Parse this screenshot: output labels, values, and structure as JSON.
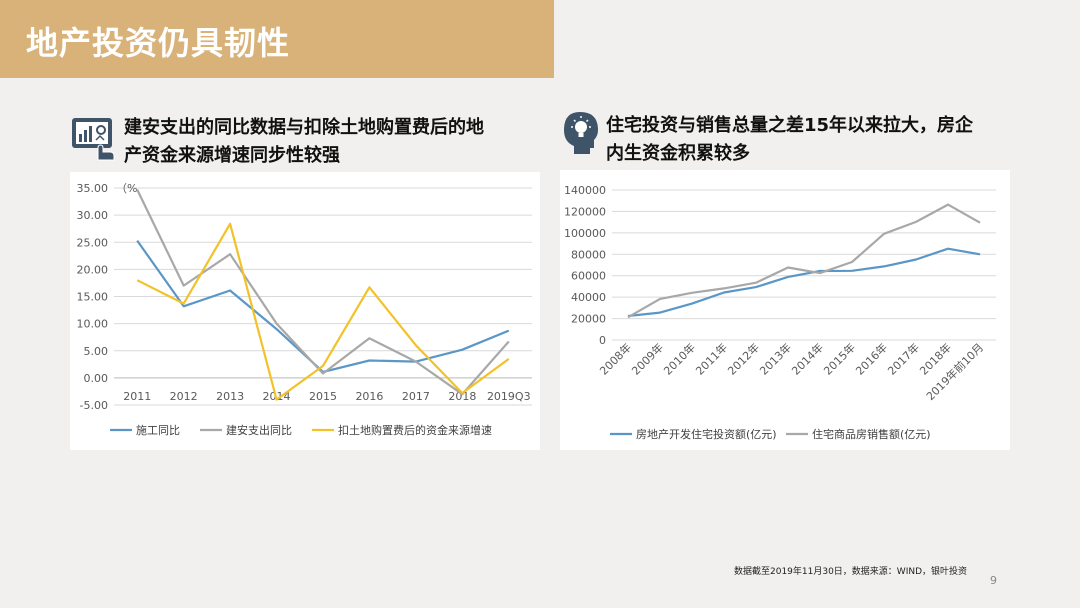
{
  "slide": {
    "title": "地产投资仍具韧性",
    "page_number": "9",
    "footnote": "数据截至2019年11月30日，数据来源：WIND，银叶投资"
  },
  "left_section": {
    "icon": "dashboard-touch-icon",
    "heading_line1": "建安支出的同比数据与扣除土地购置费后的地",
    "heading_line2": "产资金来源增速同步性较强"
  },
  "right_section": {
    "icon": "head-lightbulb-icon",
    "heading_line1": "住宅投资与销售总量之差15年以来拉大，房企",
    "heading_line2": "内生资金积累较多"
  },
  "chart_data": [
    {
      "type": "line",
      "unit_label": "（%",
      "categories": [
        "2011",
        "2012",
        "2013",
        "2014",
        "2015",
        "2016",
        "2017",
        "2018",
        "2019Q3"
      ],
      "ylim": [
        -5,
        35
      ],
      "yticks": [
        "35.00",
        "30.00",
        "25.00",
        "20.00",
        "15.00",
        "10.00",
        "5.00",
        "0.00",
        "-5.00"
      ],
      "grid": true,
      "legend_position": "bottom",
      "series": [
        {
          "name": "施工同比",
          "color": "#5a97c7",
          "values": [
            25.3,
            13.2,
            16.1,
            9.0,
            1.1,
            3.2,
            3.0,
            5.2,
            8.7
          ]
        },
        {
          "name": "建安支出同比",
          "color": "#a8a8a8",
          "values": [
            34.7,
            17.0,
            22.8,
            10.0,
            0.8,
            7.3,
            3.0,
            -3.0,
            6.7
          ]
        },
        {
          "name": "扣土地购置费后的资金来源增速",
          "color": "#f2c228",
          "values": [
            18.0,
            13.7,
            28.4,
            -4.0,
            2.2,
            16.7,
            6.0,
            -2.8,
            3.5
          ]
        }
      ]
    },
    {
      "type": "line",
      "categories": [
        "2008年",
        "2009年",
        "2010年",
        "2011年",
        "2012年",
        "2013年",
        "2014年",
        "2015年",
        "2016年",
        "2017年",
        "2018年",
        "2019年前10月"
      ],
      "ylim": [
        0,
        140000
      ],
      "yticks": [
        "140000",
        "120000",
        "100000",
        "80000",
        "60000",
        "40000",
        "20000",
        "0"
      ],
      "grid": true,
      "legend_position": "bottom",
      "series": [
        {
          "name": "房地产开发住宅投资额(亿元)",
          "color": "#5a97c7",
          "values": [
            22400,
            25600,
            34000,
            44300,
            49400,
            58900,
            64400,
            64600,
            68700,
            75100,
            85200,
            80000
          ]
        },
        {
          "name": "住宅商品房销售额(亿元)",
          "color": "#a8a8a8",
          "values": [
            21200,
            38400,
            44100,
            48200,
            53500,
            67700,
            62400,
            72800,
            99100,
            110200,
            126400,
            109500
          ]
        }
      ]
    }
  ]
}
